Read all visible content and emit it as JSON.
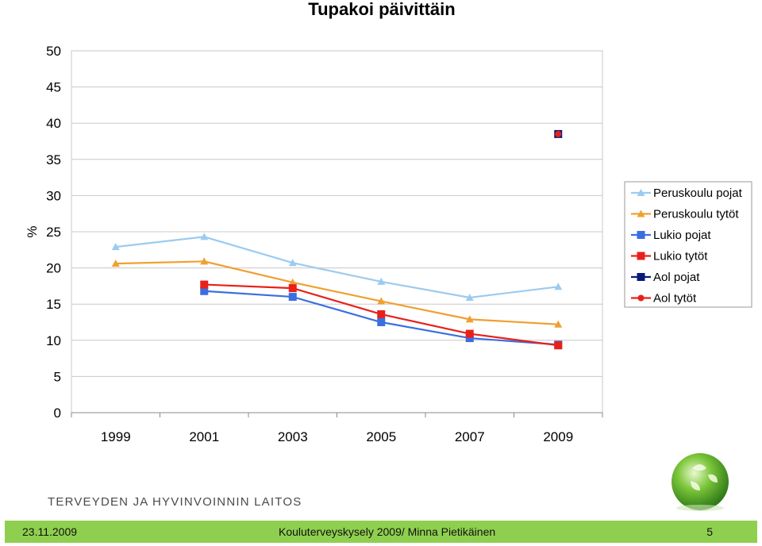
{
  "chart_data": {
    "type": "line",
    "title": "Tupakoi päivittäin",
    "ylabel": "%",
    "xlabel": "",
    "ylim": [
      0,
      50
    ],
    "yticks": [
      0,
      5,
      10,
      15,
      20,
      25,
      30,
      35,
      40,
      45,
      50
    ],
    "categories": [
      "1999",
      "2001",
      "2003",
      "2005",
      "2007",
      "2009"
    ],
    "grid": true,
    "legend_position": "right",
    "series": [
      {
        "name": "Peruskoulu pojat",
        "color": "#9ccbf0",
        "marker": "triangle",
        "values": [
          22.9,
          24.3,
          20.7,
          18.1,
          15.9,
          17.4
        ]
      },
      {
        "name": "Peruskoulu tytöt",
        "color": "#f0a030",
        "marker": "triangle",
        "values": [
          20.6,
          20.9,
          18.0,
          15.4,
          12.9,
          12.2
        ]
      },
      {
        "name": "Lukio pojat",
        "color": "#3b6fe0",
        "marker": "square",
        "values": [
          null,
          16.8,
          16.0,
          12.5,
          10.3,
          9.4
        ]
      },
      {
        "name": "Lukio tytöt",
        "color": "#e8201a",
        "marker": "square",
        "values": [
          null,
          17.7,
          17.2,
          13.6,
          10.9,
          9.3
        ]
      },
      {
        "name": "Aol pojat",
        "color": "#0a1a7a",
        "marker": "square",
        "values": [
          null,
          null,
          null,
          null,
          null,
          38.5
        ]
      },
      {
        "name": "Aol tytöt",
        "color": "#e8201a",
        "marker": "circle",
        "values": [
          null,
          null,
          null,
          null,
          null,
          38.5
        ]
      }
    ]
  },
  "organization": "TERVEYDEN JA HYVINVOINNIN LAITOS",
  "footer": {
    "date": "23.11.2009",
    "center": "Kouluterveyskysely 2009/ Minna Pietikäinen",
    "page": "5"
  },
  "logo_icon": "leaf-sphere-icon"
}
